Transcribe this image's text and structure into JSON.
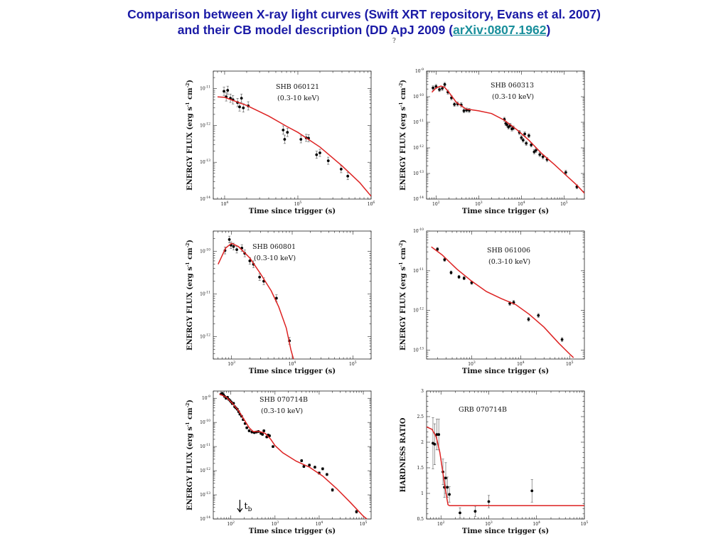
{
  "header": {
    "line1": "Comparison between X-ray light curves (Swift XRT repository, Evans et al. 2007)",
    "line2_pre": "and  their CB model description  (DD ApJ 2009 (",
    "line2_link": "arXiv:0807.1962",
    "line2_post": ")",
    "stray_mark": "?"
  },
  "colors": {
    "title": "#1a1aa6",
    "link": "#1a8f9c",
    "model": "#dd2222",
    "data": "#000000"
  },
  "chart_data": [
    {
      "type": "scatter",
      "id": "p1",
      "annotations": [
        "SHB 060121",
        "(0.3-10 keV)"
      ],
      "xlabel": "Time since trigger (s)",
      "ylabel": "ENERGY FLUX (erg s-1 cm-2)",
      "xscale": "log",
      "yscale": "log",
      "xlim": [
        7000,
        1000000
      ],
      "ylim": [
        1e-14,
        3e-11
      ],
      "xticks": [
        {
          "v": 10000,
          "l": "10^4"
        },
        {
          "v": 100000,
          "l": "10^5"
        },
        {
          "v": 1000000,
          "l": "10^6"
        }
      ],
      "yticks": [
        {
          "v": 1e-11,
          "l": "10^-11"
        },
        {
          "v": 1e-12,
          "l": "10^-12"
        },
        {
          "v": 1e-13,
          "l": "10^-13"
        },
        {
          "v": 1e-14,
          "l": "10^-14"
        }
      ],
      "points": [
        [
          9800,
          8.5e-12,
          0.3
        ],
        [
          10500,
          6e-12,
          0.3
        ],
        [
          11000,
          9e-12,
          0.3
        ],
        [
          12000,
          5.5e-12,
          0.3
        ],
        [
          13000,
          5e-12,
          0.3
        ],
        [
          15000,
          4.2e-12,
          0.3
        ],
        [
          16000,
          3.2e-12,
          0.3
        ],
        [
          17000,
          5.5e-12,
          0.3
        ],
        [
          18000,
          3e-12,
          0.3
        ],
        [
          21000,
          3.4e-12,
          0.3
        ],
        [
          63000,
          7.5e-13,
          0.3
        ],
        [
          66000,
          4.2e-13,
          0.3
        ],
        [
          72000,
          6.5e-13,
          0.3
        ],
        [
          110000,
          4.2e-13,
          0.25
        ],
        [
          130000,
          4.6e-13,
          0.25
        ],
        [
          140000,
          4.5e-13,
          0.25
        ],
        [
          180000,
          1.6e-13,
          0.25
        ],
        [
          200000,
          1.8e-13,
          0.25
        ],
        [
          260000,
          1.1e-13,
          0.25
        ],
        [
          390000,
          6.5e-14,
          0.25
        ],
        [
          480000,
          4.2e-14,
          0.25
        ]
      ],
      "model": [
        [
          8000,
          6e-12
        ],
        [
          10000,
          5.8e-12
        ],
        [
          20000,
          3.5e-12
        ],
        [
          40000,
          1.8e-12
        ],
        [
          70000,
          9.5e-13
        ],
        [
          100000,
          6.5e-13
        ],
        [
          200000,
          2.6e-13
        ],
        [
          400000,
          8e-14
        ],
        [
          700000,
          2.8e-14
        ],
        [
          1000000,
          1.2e-14
        ]
      ]
    },
    {
      "type": "scatter",
      "id": "p2",
      "annotations": [
        "SHB 060313",
        "(0.3-10 keV)"
      ],
      "xlabel": "Time since trigger (s)",
      "ylabel": "ENERGY FLUX (erg s-1 cm-2)",
      "xscale": "log",
      "yscale": "log",
      "xlim": [
        60,
        300000
      ],
      "ylim": [
        1e-14,
        1e-09
      ],
      "xticks": [
        {
          "v": 100,
          "l": "10^2"
        },
        {
          "v": 1000,
          "l": "10^3"
        },
        {
          "v": 10000,
          "l": "10^4"
        },
        {
          "v": 100000,
          "l": "10^5"
        }
      ],
      "yticks": [
        {
          "v": 1e-09,
          "l": "10^-9"
        },
        {
          "v": 1e-10,
          "l": "10^-10"
        },
        {
          "v": 1e-11,
          "l": "10^-11"
        },
        {
          "v": 1e-12,
          "l": "10^-12"
        },
        {
          "v": 1e-13,
          "l": "10^-13"
        },
        {
          "v": 1e-14,
          "l": "10^-14"
        }
      ],
      "points": [
        [
          85,
          2.2e-10,
          0.2
        ],
        [
          100,
          2.5e-10,
          0.2
        ],
        [
          120,
          1.9e-10,
          0.2
        ],
        [
          140,
          2.1e-10,
          0.2
        ],
        [
          160,
          3e-10,
          0.2
        ],
        [
          190,
          1.5e-10,
          0.2
        ],
        [
          230,
          9e-11,
          0.2
        ],
        [
          270,
          5e-11,
          0.2
        ],
        [
          320,
          5.2e-11,
          0.2
        ],
        [
          390,
          4.8e-11,
          0.2
        ],
        [
          450,
          2.8e-11,
          0.2
        ],
        [
          520,
          3e-11,
          0.2
        ],
        [
          600,
          2.9e-11,
          0.2
        ],
        [
          4000,
          1.3e-11,
          0.2
        ],
        [
          4300,
          9e-12,
          0.2
        ],
        [
          4600,
          8e-12,
          0.2
        ],
        [
          5000,
          6.5e-12,
          0.2
        ],
        [
          5500,
          7.5e-12,
          0.2
        ],
        [
          6000,
          5.5e-12,
          0.2
        ],
        [
          6500,
          6e-12,
          0.2
        ],
        [
          9000,
          4e-12,
          0.2
        ],
        [
          10000,
          2.5e-12,
          0.2
        ],
        [
          11000,
          2e-12,
          0.2
        ],
        [
          12000,
          3.5e-12,
          0.2
        ],
        [
          13000,
          1.5e-12,
          0.2
        ],
        [
          15000,
          3e-12,
          0.2
        ],
        [
          17000,
          1.3e-12,
          0.2
        ],
        [
          20000,
          7e-13,
          0.2
        ],
        [
          22000,
          8e-13,
          0.2
        ],
        [
          27000,
          5.5e-13,
          0.2
        ],
        [
          32000,
          4.5e-13,
          0.2
        ],
        [
          40000,
          3.5e-13,
          0.2
        ],
        [
          110000,
          1.1e-13,
          0.2
        ],
        [
          200000,
          3e-14,
          0.2
        ]
      ],
      "model": [
        [
          80,
          1.5e-10
        ],
        [
          100,
          2.2e-10
        ],
        [
          130,
          2.6e-10
        ],
        [
          160,
          2.3e-10
        ],
        [
          200,
          1.5e-10
        ],
        [
          300,
          6e-11
        ],
        [
          500,
          3.3e-11
        ],
        [
          1000,
          2.8e-11
        ],
        [
          2000,
          2.2e-11
        ],
        [
          4000,
          1.2e-11
        ],
        [
          8000,
          5e-12
        ],
        [
          15000,
          2e-12
        ],
        [
          30000,
          6e-13
        ],
        [
          60000,
          2.2e-13
        ],
        [
          100000,
          1e-13
        ],
        [
          200000,
          3.5e-14
        ],
        [
          300000,
          1.7e-14
        ]
      ]
    },
    {
      "type": "scatter",
      "id": "p3",
      "annotations": [
        "SHB 060801",
        "(0.3-10 keV)"
      ],
      "xlabel": "Time since trigger (s)",
      "ylabel": "ENERGY FLUX (erg s-1 cm-2)",
      "xscale": "log",
      "yscale": "log",
      "xlim": [
        500,
        200000
      ],
      "ylim": [
        3e-13,
        3e-10
      ],
      "xticks": [
        {
          "v": 1000,
          "l": "10^3"
        },
        {
          "v": 10000,
          "l": "10^4"
        },
        {
          "v": 100000,
          "l": "10^5"
        }
      ],
      "yticks": [
        {
          "v": 1e-10,
          "l": "10^-10"
        },
        {
          "v": 1e-11,
          "l": "10^-11"
        },
        {
          "v": 1e-12,
          "l": "10^-12"
        }
      ],
      "points": [
        [
          780,
          1.05e-10,
          0.2
        ],
        [
          920,
          1.9e-10,
          0.2
        ],
        [
          980,
          1.4e-10,
          0.2
        ],
        [
          1080,
          1.3e-10,
          0.2
        ],
        [
          1220,
          1.1e-10,
          0.2
        ],
        [
          1480,
          1.2e-10,
          0.2
        ],
        [
          1650,
          9e-11,
          0.2
        ],
        [
          2000,
          6e-11,
          0.2
        ],
        [
          2300,
          5e-11,
          0.2
        ],
        [
          2900,
          2.5e-11,
          0.2
        ],
        [
          3400,
          2e-11,
          0.2
        ],
        [
          5500,
          8e-12,
          0.2
        ],
        [
          9000,
          8e-13,
          0.2
        ]
      ],
      "model": [
        [
          600,
          5e-11
        ],
        [
          800,
          1.2e-10
        ],
        [
          1000,
          1.55e-10
        ],
        [
          1300,
          1.3e-10
        ],
        [
          2000,
          7e-11
        ],
        [
          3000,
          3e-11
        ],
        [
          4500,
          1.2e-11
        ],
        [
          6000,
          5e-12
        ],
        [
          8000,
          1.6e-12
        ],
        [
          9500,
          5e-13
        ],
        [
          10500,
          3e-13
        ]
      ]
    },
    {
      "type": "scatter",
      "id": "p4",
      "annotations": [
        "SHB 061006",
        "(0.3-10 keV)"
      ],
      "xlabel": "Time since trigger (s)",
      "ylabel": "ENERGY FLUX (erg s-1 cm-2)",
      "xscale": "log",
      "yscale": "log",
      "xlim": [
        120,
        200000
      ],
      "ylim": [
        6e-14,
        1e-10
      ],
      "xticks": [
        {
          "v": 1000,
          "l": "10^3"
        },
        {
          "v": 10000,
          "l": "10^4"
        },
        {
          "v": 100000,
          "l": "10^5"
        }
      ],
      "yticks": [
        {
          "v": 1e-10,
          "l": "10^-10"
        },
        {
          "v": 1e-11,
          "l": "10^-11"
        },
        {
          "v": 1e-12,
          "l": "10^-12"
        },
        {
          "v": 1e-13,
          "l": "10^-13"
        }
      ],
      "points": [
        [
          200,
          3.5e-11,
          0.1
        ],
        [
          280,
          1.9e-11,
          0.1
        ],
        [
          380,
          9e-12,
          0.1
        ],
        [
          550,
          7e-12,
          0.1
        ],
        [
          700,
          6.5e-12,
          0.1
        ],
        [
          1000,
          5e-12,
          0.1
        ],
        [
          6000,
          1.5e-12,
          0.12
        ],
        [
          7200,
          1.6e-12,
          0.12
        ],
        [
          14500,
          6e-13,
          0.12
        ],
        [
          23000,
          7.5e-13,
          0.12
        ],
        [
          70000,
          1.85e-13,
          0.12
        ]
      ],
      "model": [
        [
          150,
          4e-11
        ],
        [
          250,
          2.5e-11
        ],
        [
          500,
          1.1e-11
        ],
        [
          1000,
          5.5e-12
        ],
        [
          2000,
          3e-12
        ],
        [
          4000,
          2e-12
        ],
        [
          8000,
          1.4e-12
        ],
        [
          15000,
          8e-13
        ],
        [
          30000,
          3.8e-13
        ],
        [
          60000,
          1.5e-13
        ],
        [
          100000,
          8e-14
        ],
        [
          120000,
          6.5e-14
        ]
      ]
    },
    {
      "type": "scatter",
      "id": "p5",
      "annotations": [
        "SHB 070714B",
        "(0.3-10 keV)",
        "t",
        "b"
      ],
      "xlabel": "Time since trigger (s)",
      "ylabel": "ENERGY FLUX (erg s-1 cm-2)",
      "xscale": "log",
      "yscale": "log",
      "xlim": [
        40,
        150000
      ],
      "ylim": [
        1e-14,
        2e-09
      ],
      "xticks": [
        {
          "v": 100,
          "l": "10^2"
        },
        {
          "v": 1000,
          "l": "10^3"
        },
        {
          "v": 10000,
          "l": "10^4"
        },
        {
          "v": 100000,
          "l": "10^5"
        }
      ],
      "yticks": [
        {
          "v": 1e-09,
          "l": "10^-9"
        },
        {
          "v": 1e-10,
          "l": "10^-10"
        },
        {
          "v": 1e-11,
          "l": "10^-11"
        },
        {
          "v": 1e-12,
          "l": "10^-12"
        },
        {
          "v": 1e-13,
          "l": "10^-13"
        },
        {
          "v": 1e-14,
          "l": "10^-14"
        }
      ],
      "points": [
        [
          60,
          1.5e-09,
          0.1
        ],
        [
          64,
          1.6e-09,
          0.1
        ],
        [
          68,
          1.4e-09,
          0.1
        ],
        [
          72,
          1.2e-09,
          0.1
        ],
        [
          78,
          1e-09,
          0.1
        ],
        [
          84,
          1.1e-09,
          0.1
        ],
        [
          90,
          9e-10,
          0.1
        ],
        [
          96,
          8e-10,
          0.1
        ],
        [
          102,
          7e-10,
          0.1
        ],
        [
          108,
          6e-10,
          0.1
        ],
        [
          115,
          6.2e-10,
          0.1
        ],
        [
          122,
          4.5e-10,
          0.1
        ],
        [
          130,
          4e-10,
          0.1
        ],
        [
          140,
          3.5e-10,
          0.1
        ],
        [
          150,
          2.8e-10,
          0.1
        ],
        [
          160,
          2.2e-10,
          0.1
        ],
        [
          175,
          1.8e-10,
          0.1
        ],
        [
          190,
          1.3e-10,
          0.1
        ],
        [
          210,
          9e-11,
          0.1
        ],
        [
          230,
          6e-11,
          0.1
        ],
        [
          260,
          4.5e-11,
          0.1
        ],
        [
          300,
          4e-11,
          0.1
        ],
        [
          340,
          3.8e-11,
          0.1
        ],
        [
          380,
          4e-11,
          0.1
        ],
        [
          420,
          4.2e-11,
          0.1
        ],
        [
          480,
          3.5e-11,
          0.1
        ],
        [
          520,
          3.2e-11,
          0.1
        ],
        [
          560,
          4.5e-11,
          0.1
        ],
        [
          650,
          2.5e-11,
          0.1
        ],
        [
          700,
          3e-11,
          0.1
        ],
        [
          750,
          2.8e-11,
          0.1
        ],
        [
          900,
          1e-11,
          0.1
        ],
        [
          4000,
          2.6e-12,
          0.12
        ],
        [
          4500,
          1.5e-12,
          0.12
        ],
        [
          6000,
          1.7e-12,
          0.12
        ],
        [
          8000,
          1.4e-12,
          0.12
        ],
        [
          10000,
          8e-13,
          0.12
        ],
        [
          12000,
          1.2e-12,
          0.12
        ],
        [
          15000,
          7e-13,
          0.12
        ],
        [
          20000,
          1.6e-13,
          0.15
        ],
        [
          70000,
          2e-14,
          0.15
        ]
      ],
      "model": [
        [
          55,
          1.5e-09
        ],
        [
          80,
          1.1e-09
        ],
        [
          110,
          6e-10
        ],
        [
          150,
          3e-10
        ],
        [
          200,
          1.3e-10
        ],
        [
          260,
          6e-11
        ],
        [
          320,
          4.2e-11
        ],
        [
          450,
          4.2e-11
        ],
        [
          600,
          3.5e-11
        ],
        [
          800,
          2e-11
        ],
        [
          1000,
          1.1e-11
        ],
        [
          1500,
          5.5e-12
        ],
        [
          3000,
          2.5e-12
        ],
        [
          6000,
          1.4e-12
        ],
        [
          12000,
          6e-13
        ],
        [
          25000,
          1.8e-13
        ],
        [
          50000,
          5e-14
        ],
        [
          100000,
          1.3e-14
        ],
        [
          120000,
          1e-14
        ]
      ],
      "marker_tb": 160
    },
    {
      "type": "scatter",
      "id": "p6",
      "annotations": [
        "GRB 070714B"
      ],
      "xlabel": "Time since trigger (s)",
      "ylabel": "HARDNESS RATIO",
      "xscale": "log",
      "yscale": "linear",
      "xlim": [
        50,
        100000
      ],
      "ylim": [
        0.5,
        3
      ],
      "xticks": [
        {
          "v": 100,
          "l": "10^2"
        },
        {
          "v": 1000,
          "l": "10^3"
        },
        {
          "v": 10000,
          "l": "10^4"
        },
        {
          "v": 100000,
          "l": "10^5"
        }
      ],
      "yticks": [
        {
          "v": 0.5,
          "l": "0.5"
        },
        {
          "v": 1,
          "l": "1"
        },
        {
          "v": 1.5,
          "l": "1.5"
        },
        {
          "v": 2,
          "l": "2"
        },
        {
          "v": 2.5,
          "l": "2.5"
        },
        {
          "v": 3,
          "l": "3"
        }
      ],
      "points": [
        [
          68,
          1.98,
          0.5
        ],
        [
          74,
          1.96,
          0.4
        ],
        [
          82,
          2.15,
          0.3
        ],
        [
          90,
          2.15,
          0.3
        ],
        [
          110,
          1.42,
          0.25
        ],
        [
          118,
          1.12,
          0.2
        ],
        [
          126,
          1.3,
          0.3
        ],
        [
          136,
          1.12,
          0.2
        ],
        [
          150,
          0.98,
          0.15
        ],
        [
          250,
          0.62,
          0.1
        ],
        [
          520,
          0.65,
          0.1
        ],
        [
          1000,
          0.84,
          0.12
        ],
        [
          8000,
          1.05,
          0.22
        ]
      ],
      "model": [
        [
          50,
          2.3
        ],
        [
          65,
          2.25
        ],
        [
          80,
          2.1
        ],
        [
          95,
          1.8
        ],
        [
          110,
          1.4
        ],
        [
          125,
          1.05
        ],
        [
          140,
          0.78
        ],
        [
          150,
          0.76
        ],
        [
          100000,
          0.76
        ]
      ]
    }
  ]
}
